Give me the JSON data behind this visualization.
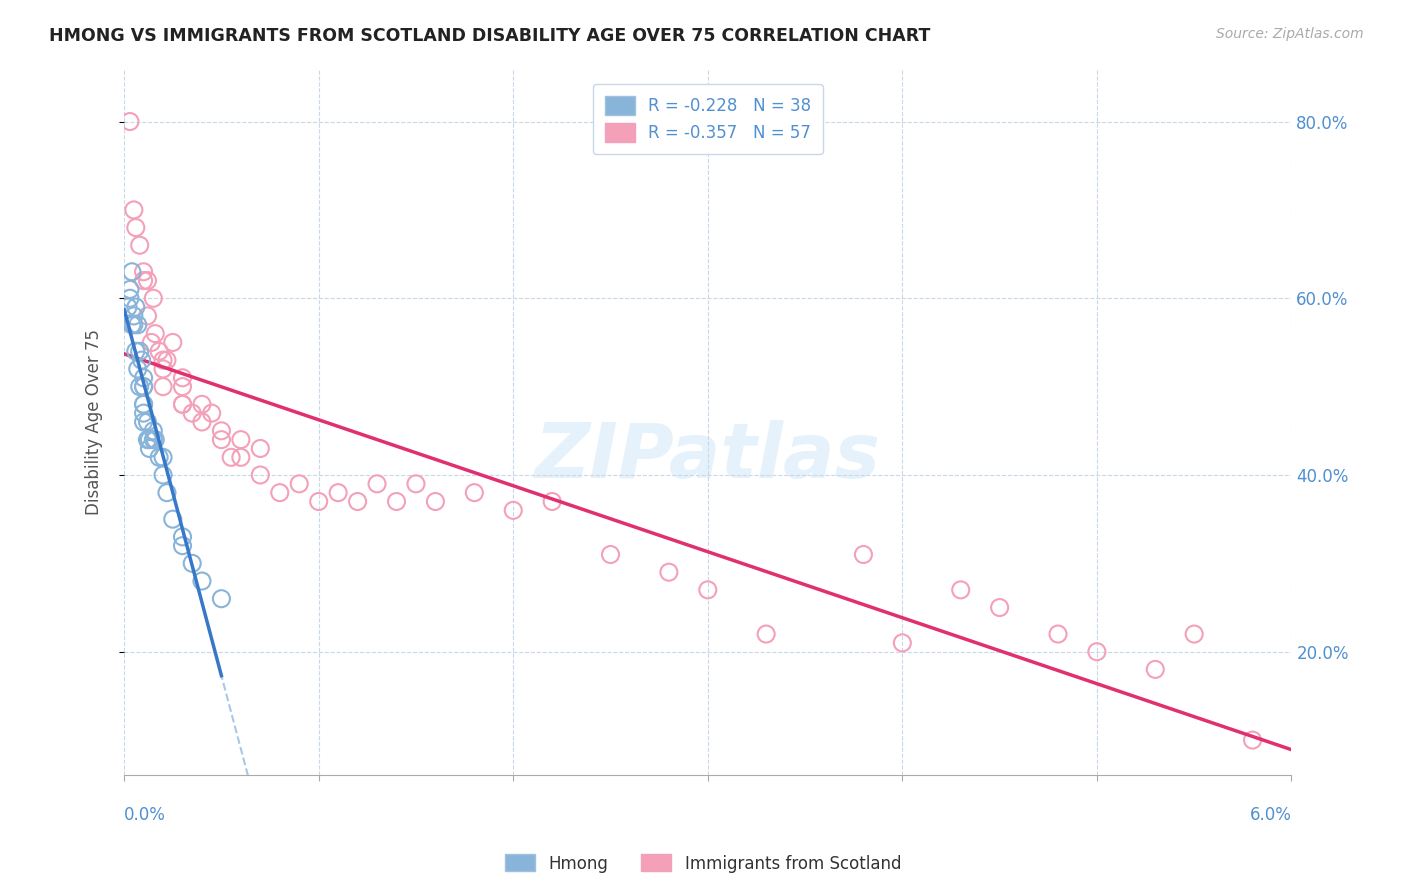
{
  "title": "HMONG VS IMMIGRANTS FROM SCOTLAND DISABILITY AGE OVER 75 CORRELATION CHART",
  "source": "Source: ZipAtlas.com",
  "ylabel": "Disability Age Over 75",
  "hmong_color": "#89b4d9",
  "scotland_color": "#f4a0b8",
  "trendline_hmong_color": "#3878c8",
  "trendline_scotland_color": "#e03070",
  "dashed_color": "#a8c8e8",
  "watermark": "ZIPatlas",
  "xmin": 0.0,
  "xmax": 0.06,
  "ymin": 0.06,
  "ymax": 0.86,
  "hmong_x": [
    0.0002,
    0.0003,
    0.0003,
    0.0004,
    0.0004,
    0.0005,
    0.0005,
    0.0006,
    0.0006,
    0.0007,
    0.0007,
    0.0008,
    0.0008,
    0.0009,
    0.001,
    0.001,
    0.001,
    0.001,
    0.001,
    0.001,
    0.001,
    0.0012,
    0.0012,
    0.0013,
    0.0013,
    0.0015,
    0.0015,
    0.0016,
    0.0018,
    0.002,
    0.002,
    0.0022,
    0.0025,
    0.003,
    0.003,
    0.0035,
    0.004,
    0.005
  ],
  "hmong_y": [
    0.59,
    0.61,
    0.6,
    0.63,
    0.57,
    0.58,
    0.57,
    0.59,
    0.54,
    0.57,
    0.52,
    0.54,
    0.5,
    0.53,
    0.5,
    0.48,
    0.47,
    0.46,
    0.5,
    0.51,
    0.48,
    0.44,
    0.46,
    0.44,
    0.43,
    0.45,
    0.44,
    0.44,
    0.42,
    0.42,
    0.4,
    0.38,
    0.35,
    0.33,
    0.32,
    0.3,
    0.28,
    0.26
  ],
  "scotland_x": [
    0.0003,
    0.0005,
    0.0006,
    0.0008,
    0.001,
    0.001,
    0.0012,
    0.0012,
    0.0014,
    0.0015,
    0.0016,
    0.0018,
    0.002,
    0.002,
    0.002,
    0.0022,
    0.0025,
    0.003,
    0.003,
    0.003,
    0.003,
    0.0035,
    0.004,
    0.004,
    0.0045,
    0.005,
    0.005,
    0.0055,
    0.006,
    0.006,
    0.007,
    0.007,
    0.008,
    0.009,
    0.01,
    0.011,
    0.012,
    0.013,
    0.014,
    0.015,
    0.016,
    0.018,
    0.02,
    0.022,
    0.025,
    0.028,
    0.03,
    0.033,
    0.038,
    0.04,
    0.043,
    0.045,
    0.048,
    0.05,
    0.053,
    0.055,
    0.058
  ],
  "scotland_y": [
    0.8,
    0.7,
    0.68,
    0.66,
    0.63,
    0.62,
    0.62,
    0.58,
    0.55,
    0.6,
    0.56,
    0.54,
    0.53,
    0.52,
    0.5,
    0.53,
    0.55,
    0.51,
    0.5,
    0.48,
    0.48,
    0.47,
    0.48,
    0.46,
    0.47,
    0.45,
    0.44,
    0.42,
    0.44,
    0.42,
    0.43,
    0.4,
    0.38,
    0.39,
    0.37,
    0.38,
    0.37,
    0.39,
    0.37,
    0.39,
    0.37,
    0.38,
    0.36,
    0.37,
    0.31,
    0.29,
    0.27,
    0.22,
    0.31,
    0.21,
    0.27,
    0.25,
    0.22,
    0.2,
    0.18,
    0.22,
    0.1
  ]
}
